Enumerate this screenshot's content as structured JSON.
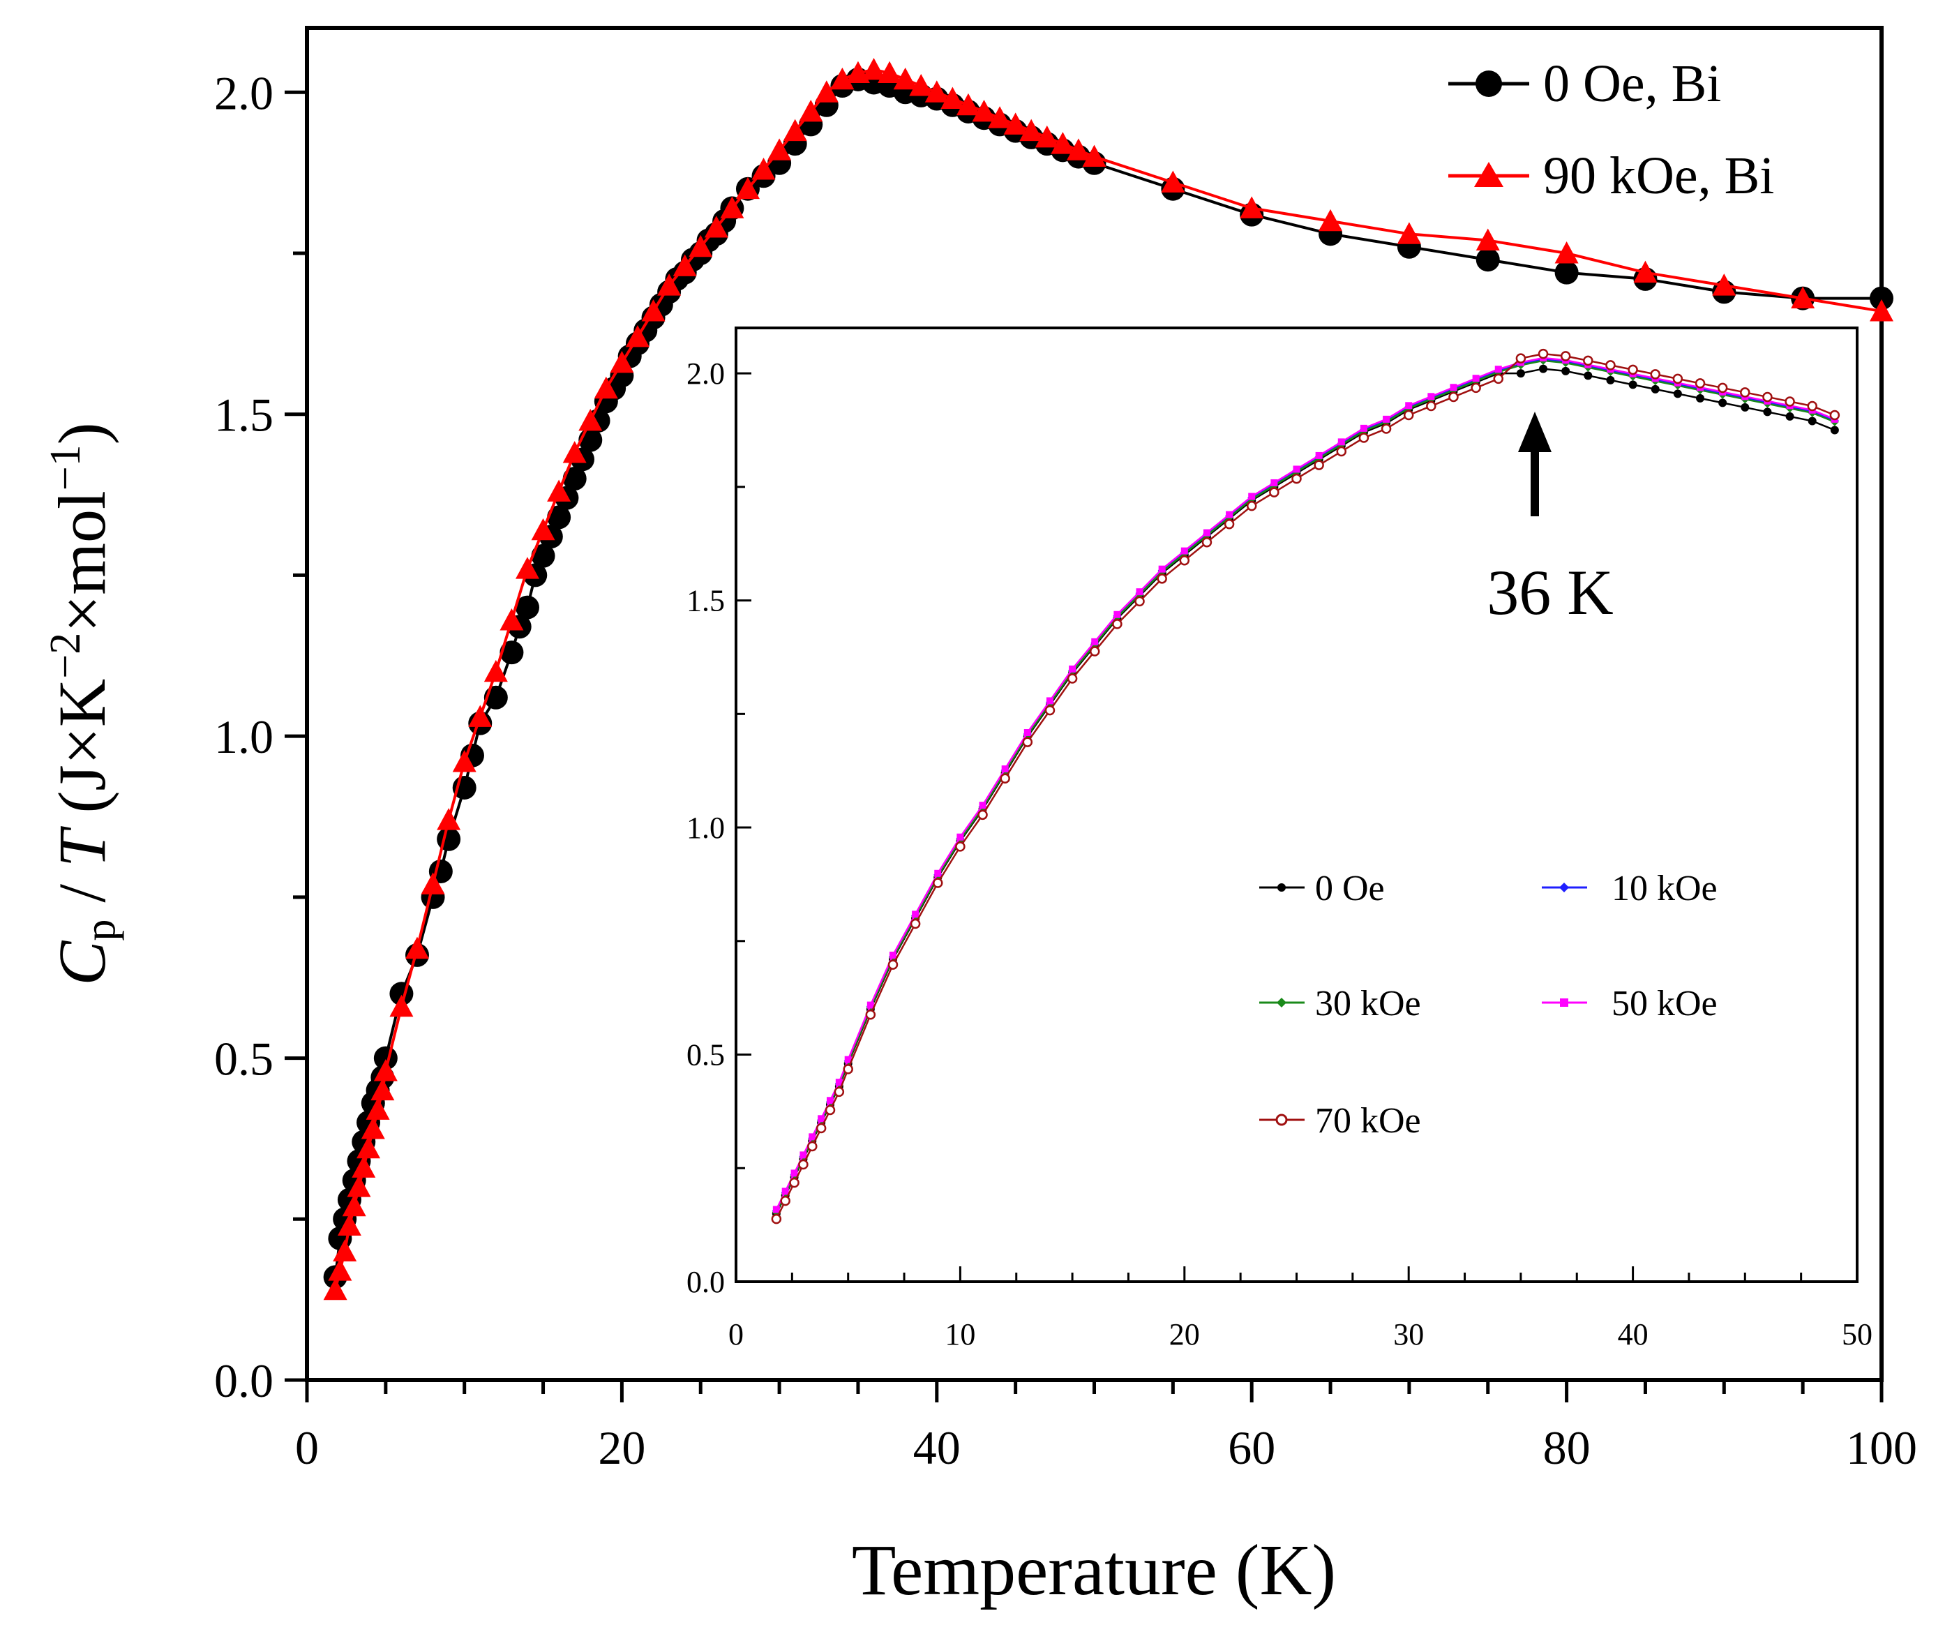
{
  "colors": {
    "series_0oe": "#000000",
    "series_90koe": "#ff0000",
    "series_10koe": "#1f1fff",
    "series_30koe": "#1a8a1a",
    "series_50koe": "#ff00ff",
    "series_70koe": "#a01010"
  },
  "chart_data": [
    {
      "id": "main",
      "type": "line",
      "xlabel": "Temperature (K)",
      "ylabel": "Cp / T (J×K⁻²×mol⁻¹)",
      "ylabel_parts": {
        "c": "C",
        "p": "p",
        "slash": " / ",
        "t": "T",
        "rest1": " (J×K",
        "exp1": "−2",
        "rest2": "×mol",
        "exp2": "−1",
        "rest3": ")"
      },
      "xlim": [
        0,
        100
      ],
      "ylim": [
        0,
        2.1
      ],
      "xticks": [
        0,
        20,
        40,
        60,
        80,
        100
      ],
      "xtick_labels": [
        "0",
        "20",
        "40",
        "60",
        "80",
        "100"
      ],
      "yticks": [
        0,
        0.5,
        1.0,
        1.5,
        2.0
      ],
      "ytick_labels": [
        "0.0",
        "0.5",
        "1.0",
        "1.5",
        "2.0"
      ],
      "legend_position": "top-right",
      "series": [
        {
          "name": "0 Oe, Bi",
          "marker": "circle",
          "x": [
            1.8,
            2.1,
            2.4,
            2.7,
            3.0,
            3.3,
            3.6,
            3.9,
            4.2,
            4.5,
            4.8,
            5,
            6,
            7,
            8,
            8.5,
            9,
            10,
            10.5,
            11,
            12,
            13,
            13.5,
            14,
            14.5,
            15,
            15.5,
            16,
            16.5,
            17,
            17.5,
            18,
            18.5,
            19,
            19.5,
            20,
            20.5,
            21,
            21.5,
            22,
            22.5,
            23,
            23.5,
            24,
            24.5,
            25,
            25.5,
            26,
            26.5,
            27,
            28,
            29,
            30,
            31,
            32,
            33,
            34,
            35,
            36,
            37,
            38,
            39,
            40,
            41,
            42,
            43,
            44,
            45,
            46,
            47,
            48,
            49,
            50,
            55,
            60,
            65,
            70,
            75,
            80,
            85,
            90,
            95,
            100
          ],
          "y": [
            0.16,
            0.22,
            0.25,
            0.28,
            0.31,
            0.34,
            0.37,
            0.4,
            0.43,
            0.45,
            0.47,
            0.5,
            0.6,
            0.66,
            0.75,
            0.79,
            0.84,
            0.92,
            0.97,
            1.02,
            1.06,
            1.13,
            1.17,
            1.2,
            1.25,
            1.28,
            1.31,
            1.34,
            1.37,
            1.4,
            1.43,
            1.46,
            1.49,
            1.52,
            1.54,
            1.56,
            1.59,
            1.61,
            1.63,
            1.65,
            1.67,
            1.69,
            1.71,
            1.72,
            1.74,
            1.75,
            1.77,
            1.78,
            1.8,
            1.82,
            1.85,
            1.87,
            1.89,
            1.92,
            1.95,
            1.98,
            2.01,
            2.02,
            2.015,
            2.01,
            2.0,
            1.995,
            1.99,
            1.98,
            1.97,
            1.96,
            1.95,
            1.94,
            1.93,
            1.92,
            1.91,
            1.9,
            1.89,
            1.85,
            1.81,
            1.78,
            1.76,
            1.74,
            1.72,
            1.71,
            1.69,
            1.68,
            1.68
          ]
        },
        {
          "name": "90 kOe, Bi",
          "marker": "triangle",
          "x": [
            1.8,
            2.1,
            2.4,
            2.7,
            3.0,
            3.3,
            3.6,
            3.9,
            4.2,
            4.5,
            4.8,
            5,
            6,
            7,
            8,
            9,
            10,
            11,
            12,
            13,
            14,
            15,
            16,
            17,
            18,
            19,
            20,
            21,
            22,
            23,
            24,
            25,
            26,
            27,
            28,
            29,
            30,
            31,
            32,
            33,
            34,
            35,
            36,
            37,
            38,
            39,
            40,
            41,
            42,
            43,
            44,
            45,
            46,
            47,
            48,
            49,
            50,
            55,
            60,
            65,
            70,
            75,
            80,
            85,
            90,
            95,
            100
          ],
          "y": [
            0.14,
            0.17,
            0.2,
            0.24,
            0.27,
            0.3,
            0.33,
            0.36,
            0.39,
            0.42,
            0.45,
            0.48,
            0.58,
            0.67,
            0.77,
            0.87,
            0.96,
            1.03,
            1.1,
            1.18,
            1.26,
            1.32,
            1.38,
            1.44,
            1.49,
            1.54,
            1.58,
            1.62,
            1.66,
            1.7,
            1.73,
            1.76,
            1.79,
            1.82,
            1.85,
            1.88,
            1.91,
            1.94,
            1.97,
            2.0,
            2.02,
            2.03,
            2.035,
            2.03,
            2.02,
            2.01,
            2.0,
            1.99,
            1.98,
            1.97,
            1.96,
            1.95,
            1.94,
            1.93,
            1.92,
            1.91,
            1.9,
            1.86,
            1.82,
            1.8,
            1.78,
            1.77,
            1.75,
            1.72,
            1.7,
            1.68,
            1.66
          ]
        }
      ]
    },
    {
      "id": "inset",
      "type": "line",
      "xlim": [
        0,
        50
      ],
      "ylim": [
        0,
        2.1
      ],
      "xticks": [
        0,
        10,
        20,
        30,
        40,
        50
      ],
      "xtick_labels": [
        "0",
        "10",
        "20",
        "30",
        "40",
        "50"
      ],
      "yticks": [
        0,
        0.5,
        1.0,
        1.5,
        2.0
      ],
      "ytick_labels": [
        "0.0",
        "0.5",
        "1.0",
        "1.5",
        "2.0"
      ],
      "legend_position": "center-right",
      "annotation": {
        "text": "36 K",
        "x": 36,
        "y": 2.02
      },
      "series": [
        {
          "name": "0 Oe",
          "marker": "dot"
        },
        {
          "name": "10 kOe",
          "marker": "diamond"
        },
        {
          "name": "30 kOe",
          "marker": "diamond"
        },
        {
          "name": "50 kOe",
          "marker": "square"
        },
        {
          "name": "70 kOe",
          "marker": "open-circle"
        }
      ],
      "curve_x": [
        1.8,
        2.2,
        2.6,
        3.0,
        3.4,
        3.8,
        4.2,
        4.6,
        5,
        6,
        7,
        8,
        9,
        10,
        11,
        12,
        13,
        14,
        15,
        16,
        17,
        18,
        19,
        20,
        21,
        22,
        23,
        24,
        25,
        26,
        27,
        28,
        29,
        30,
        31,
        32,
        33,
        34,
        35,
        36,
        37,
        38,
        39,
        40,
        41,
        42,
        43,
        44,
        45,
        46,
        47,
        48,
        49
      ],
      "curve_y": [
        0.15,
        0.19,
        0.23,
        0.27,
        0.31,
        0.35,
        0.39,
        0.43,
        0.48,
        0.6,
        0.71,
        0.8,
        0.89,
        0.97,
        1.04,
        1.12,
        1.2,
        1.27,
        1.34,
        1.4,
        1.46,
        1.51,
        1.56,
        1.6,
        1.64,
        1.68,
        1.72,
        1.75,
        1.78,
        1.81,
        1.84,
        1.87,
        1.89,
        1.92,
        1.94,
        1.96,
        1.98,
        2.0,
        2.015,
        2.025,
        2.02,
        2.01,
        2.0,
        1.99,
        1.98,
        1.97,
        1.96,
        1.95,
        1.94,
        1.93,
        1.92,
        1.91,
        1.89
      ]
    }
  ]
}
